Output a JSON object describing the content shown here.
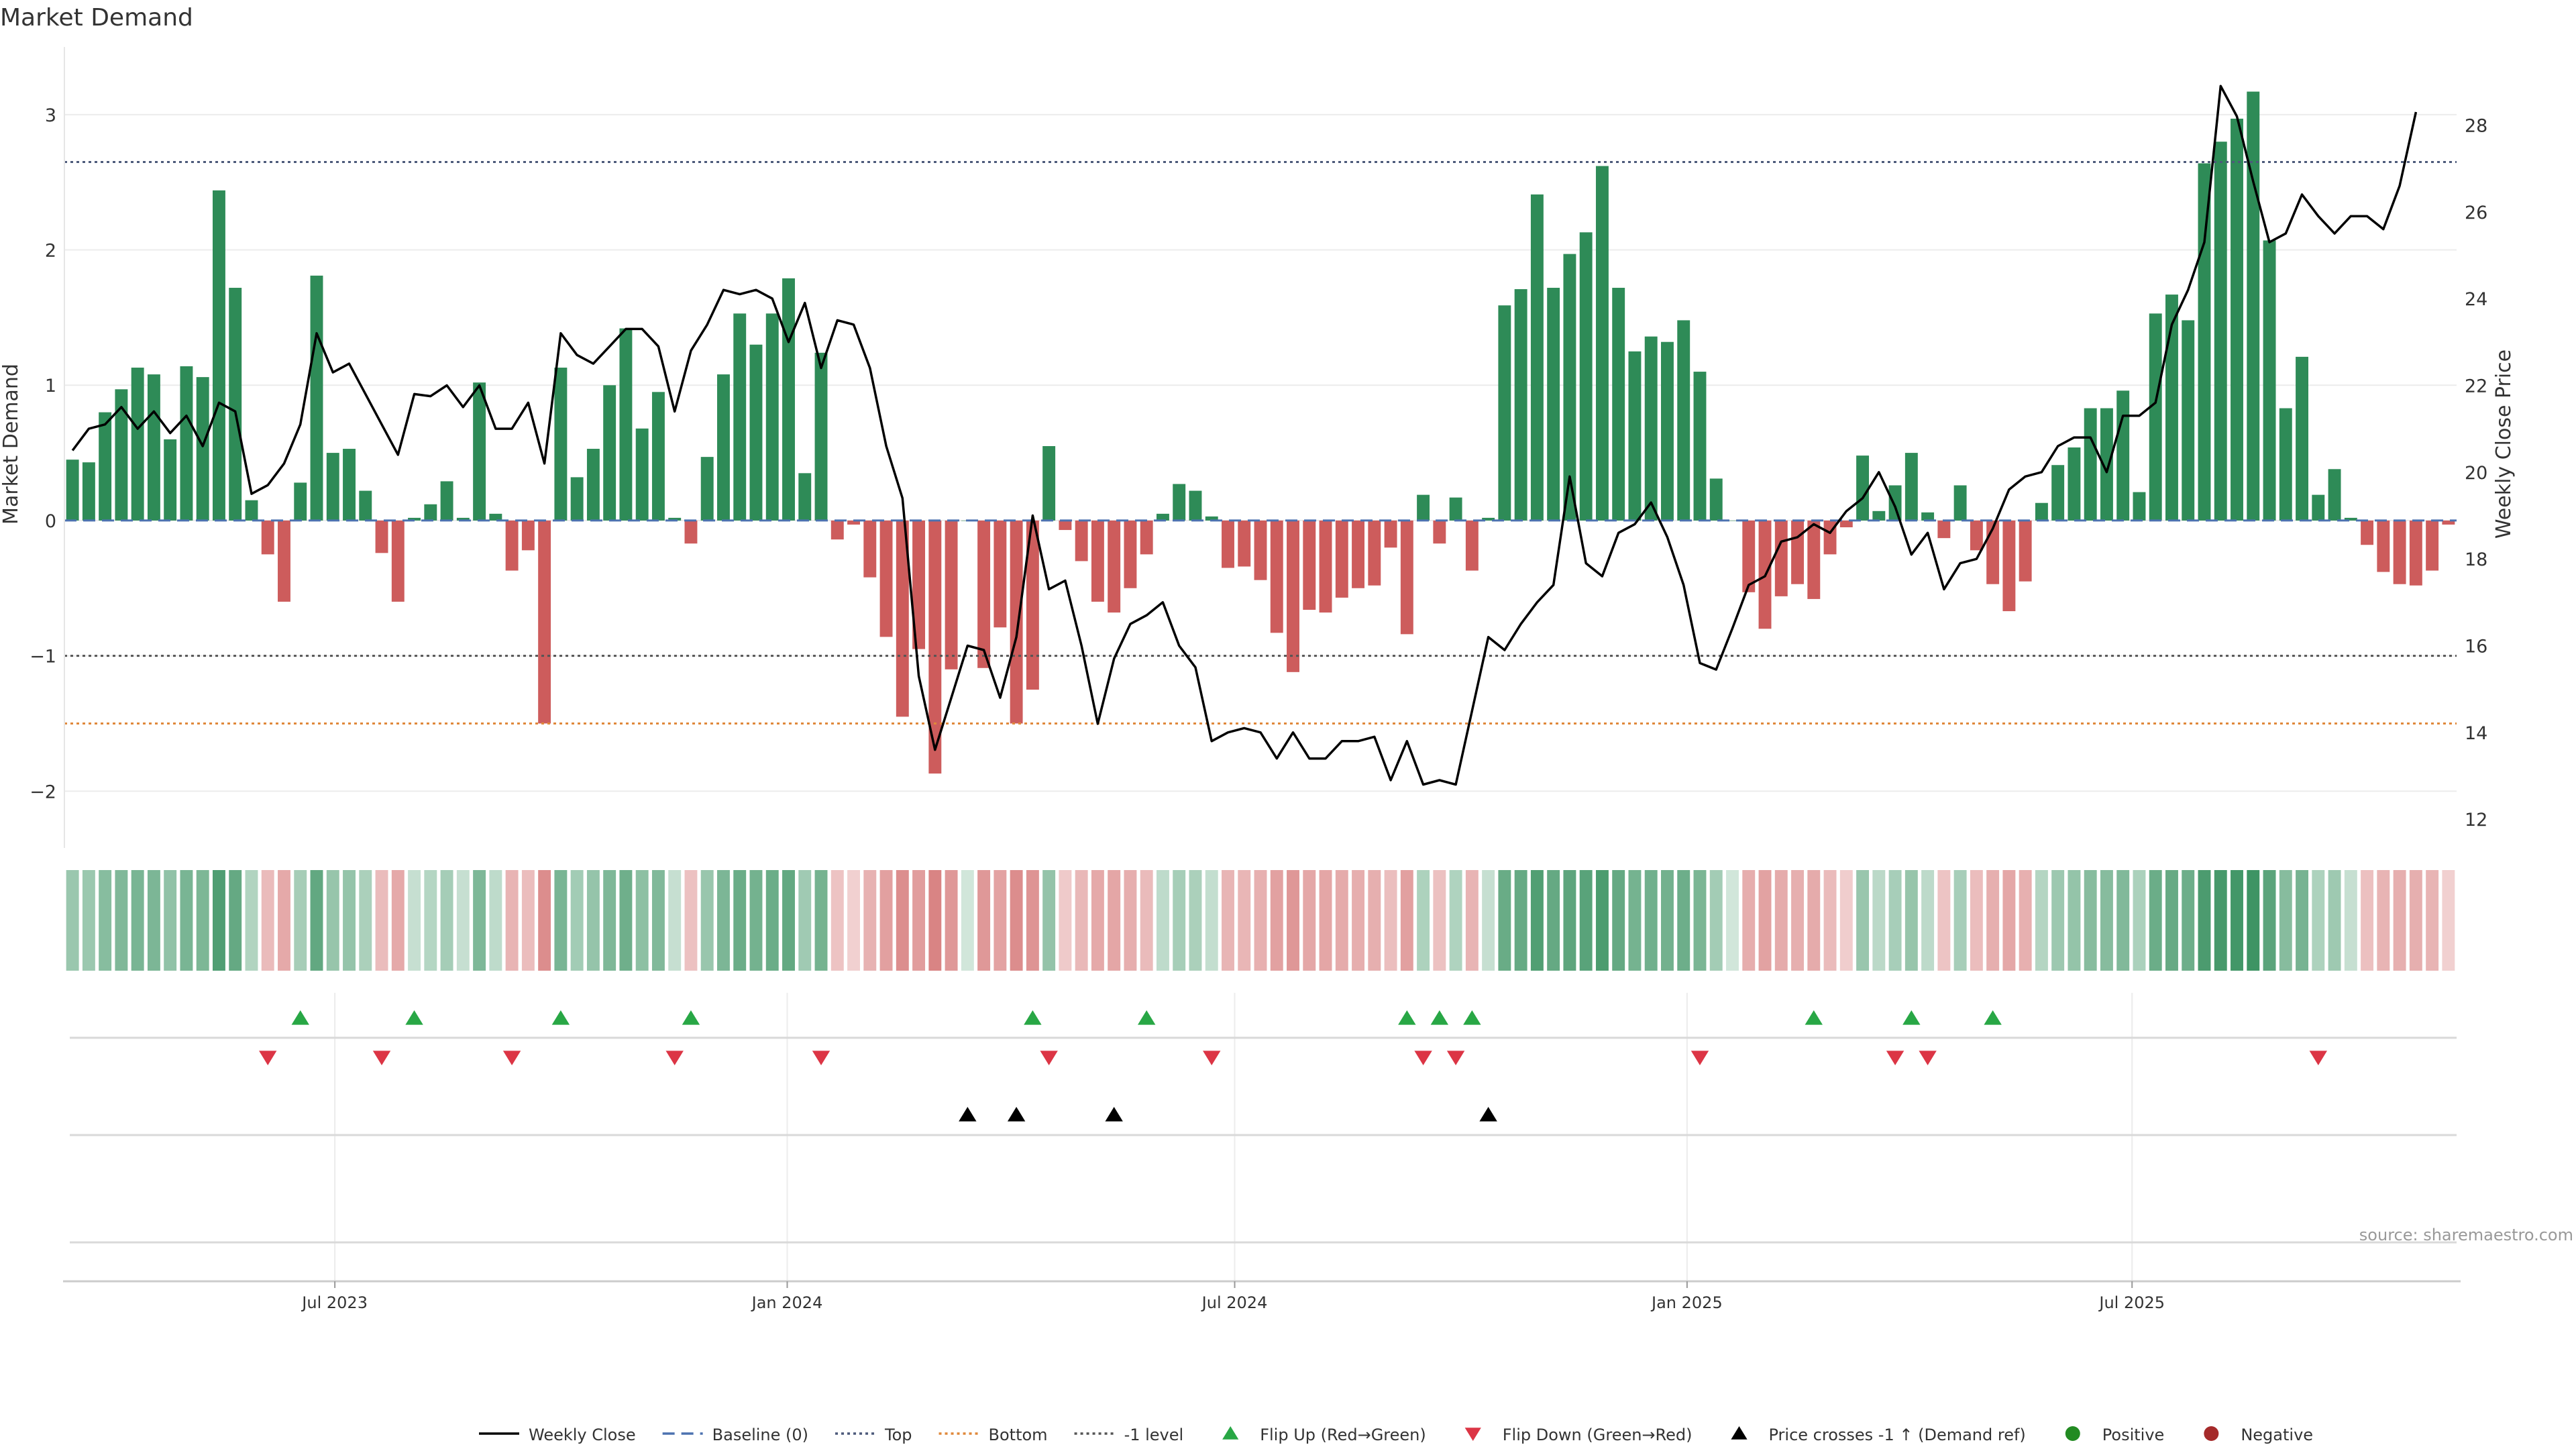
{
  "chart_data": {
    "type": "bar",
    "title": "Market Demand",
    "ylabel": "Market Demand",
    "y2label": "Weekly Close Price",
    "ylim": [
      -2.4,
      3.5
    ],
    "y2lim": [
      11.4,
      29.8
    ],
    "yticks": [
      {
        "v": 3,
        "label": "3"
      },
      {
        "v": 2,
        "label": "2"
      },
      {
        "v": 1,
        "label": "1"
      },
      {
        "v": 0,
        "label": "0"
      },
      {
        "v": -1,
        "label": "−1"
      },
      {
        "v": -2,
        "label": "−2"
      }
    ],
    "y2ticks": [
      12,
      14,
      16,
      18,
      20,
      22,
      24,
      26,
      28
    ],
    "start_week": "2023-03-13",
    "end_week": "2025-11-10",
    "x_ticks": [
      {
        "date": "2023-07-01",
        "label": "Jul 2023"
      },
      {
        "date": "2024-01-01",
        "label": "Jan 2024"
      },
      {
        "date": "2024-07-01",
        "label": "Jul 2024"
      },
      {
        "date": "2025-01-01",
        "label": "Jan 2025"
      },
      {
        "date": "2025-07-01",
        "label": "Jul 2025"
      }
    ],
    "reference_lines": {
      "baseline": 0,
      "top": 2.65,
      "bottom": -1.5,
      "minus_one": -1
    },
    "demand": [
      0.45,
      0.43,
      0.8,
      0.97,
      1.13,
      1.08,
      0.6,
      1.14,
      1.06,
      2.44,
      1.72,
      0.15,
      -0.25,
      -0.6,
      0.28,
      1.81,
      0.5,
      0.53,
      0.22,
      -0.24,
      -0.6,
      0.02,
      0.12,
      0.29,
      0.02,
      1.02,
      0.05,
      -0.37,
      -0.22,
      -1.5,
      1.13,
      0.32,
      0.53,
      1.0,
      1.42,
      0.68,
      0.95,
      0.02,
      -0.17,
      0.47,
      1.08,
      1.53,
      1.3,
      1.53,
      1.79,
      0.35,
      1.24,
      -0.14,
      -0.03,
      -0.42,
      -0.86,
      -1.45,
      -0.95,
      -1.87,
      -1.1,
      0.0,
      -1.09,
      -0.79,
      -1.5,
      -1.25,
      0.55,
      -0.07,
      -0.3,
      -0.6,
      -0.68,
      -0.5,
      -0.25,
      0.05,
      0.27,
      0.22,
      0.03,
      -0.35,
      -0.34,
      -0.44,
      -0.83,
      -1.12,
      -0.66,
      -0.68,
      -0.57,
      -0.5,
      -0.48,
      -0.2,
      -0.84,
      0.19,
      -0.17,
      0.17,
      -0.37,
      0.02,
      1.59,
      1.71,
      2.41,
      1.72,
      1.97,
      2.13,
      2.62,
      1.72,
      1.25,
      1.36,
      1.32,
      1.48,
      1.1,
      0.31,
      0.0,
      -0.53,
      -0.8,
      -0.56,
      -0.47,
      -0.58,
      -0.25,
      -0.05,
      0.48,
      0.07,
      0.26,
      0.5,
      0.06,
      -0.13,
      0.26,
      -0.22,
      -0.47,
      -0.67,
      -0.45,
      0.13,
      0.41,
      0.54,
      0.83,
      0.83,
      0.96,
      0.21,
      1.53,
      1.67,
      1.48,
      2.64,
      2.8,
      2.97,
      3.17,
      2.07,
      0.83,
      1.21,
      0.19,
      0.38,
      0.02,
      -0.18,
      -0.38,
      -0.47,
      -0.48,
      -0.37,
      -0.03
    ],
    "close": [
      20.5,
      21.0,
      21.1,
      21.5,
      21.0,
      21.4,
      20.9,
      21.3,
      20.6,
      21.6,
      21.4,
      19.5,
      19.7,
      20.2,
      21.1,
      23.2,
      22.3,
      22.5,
      21.8,
      21.1,
      20.4,
      21.8,
      21.75,
      22.0,
      21.5,
      22.0,
      21.0,
      21.0,
      21.6,
      20.2,
      23.2,
      22.7,
      22.5,
      22.9,
      23.3,
      23.3,
      22.9,
      21.4,
      22.8,
      23.4,
      24.2,
      24.1,
      24.2,
      24.0,
      23.0,
      23.9,
      22.4,
      23.5,
      23.4,
      22.4,
      20.6,
      19.4,
      15.3,
      13.6,
      14.8,
      16.0,
      15.9,
      14.8,
      16.2,
      19.0,
      17.3,
      17.5,
      16.0,
      14.2,
      15.7,
      16.5,
      16.7,
      17.0,
      16.0,
      15.5,
      13.8,
      14.0,
      14.1,
      14.0,
      13.4,
      14.0,
      13.4,
      13.4,
      13.8,
      13.8,
      13.9,
      12.9,
      13.8,
      12.8,
      12.9,
      12.8,
      14.5,
      16.2,
      15.9,
      16.5,
      17.0,
      17.4,
      19.9,
      17.9,
      17.6,
      18.6,
      18.8,
      19.3,
      18.5,
      17.4,
      15.6,
      15.45,
      16.4,
      17.4,
      17.6,
      18.4,
      18.5,
      18.8,
      18.6,
      19.1,
      19.4,
      20.0,
      19.2,
      18.1,
      18.6,
      17.3,
      17.9,
      18.0,
      18.7,
      19.6,
      19.9,
      20.0,
      20.6,
      20.8,
      20.8,
      20.0,
      21.3,
      21.3,
      21.6,
      23.4,
      24.2,
      25.3,
      28.9,
      28.2,
      26.7,
      25.3,
      25.5,
      26.4,
      25.9,
      25.5,
      25.9,
      25.9,
      25.6,
      26.6,
      28.3
    ],
    "markers": {
      "flip_up": [
        14,
        21,
        30,
        38,
        59,
        66,
        82,
        84,
        86,
        107,
        113,
        118
      ],
      "flip_down": [
        12,
        19,
        27,
        37,
        46,
        60,
        70,
        83,
        85,
        100,
        112,
        114,
        138
      ],
      "price_cross": [
        55,
        58,
        64,
        87
      ]
    },
    "colors": {
      "positive": "#2e8b57",
      "negative": "#cd5c5c",
      "line": "#000000",
      "baseline": "#4c72b0",
      "top": "#4c5a7a",
      "bottom": "#e0883a",
      "minus_one": "#555555",
      "flip_up": "#28a745",
      "flip_down": "#dc3545",
      "positive_dot": "#228b22",
      "negative_dot": "#a52a2a"
    },
    "legend": [
      {
        "label": "Weekly Close",
        "kind": "line",
        "color": "#000000",
        "dash": ""
      },
      {
        "label": "Baseline (0)",
        "kind": "line",
        "color": "#4c72b0",
        "dash": "18,10"
      },
      {
        "label": "Top",
        "kind": "line",
        "color": "#4c5a7a",
        "dash": "4,5"
      },
      {
        "label": "Bottom",
        "kind": "line",
        "color": "#e0883a",
        "dash": "4,5"
      },
      {
        "label": "-1 level",
        "kind": "line",
        "color": "#555555",
        "dash": "4,5"
      },
      {
        "label": "Flip Up (Red→Green)",
        "kind": "up",
        "color": "#28a745"
      },
      {
        "label": "Flip Down (Green→Red)",
        "kind": "down",
        "color": "#dc3545"
      },
      {
        "label": "Price crosses -1 ↑ (Demand ref)",
        "kind": "up",
        "color": "#000000"
      },
      {
        "label": "Positive",
        "kind": "dot",
        "color": "#228b22"
      },
      {
        "label": "Negative",
        "kind": "dot",
        "color": "#a52a2a"
      }
    ],
    "source": "source: sharemaestro.com"
  }
}
